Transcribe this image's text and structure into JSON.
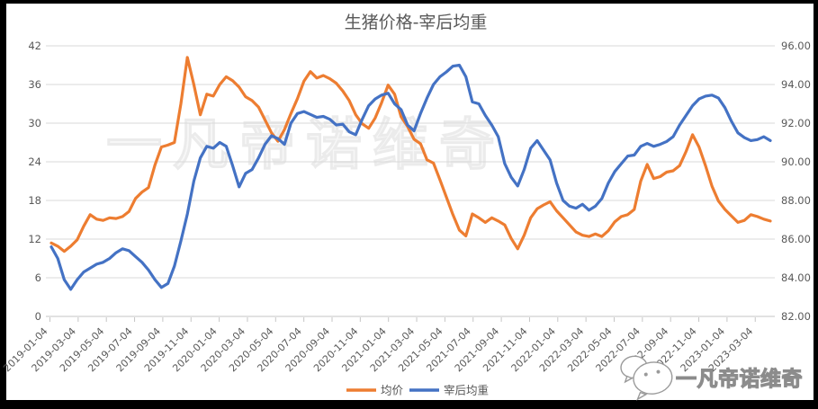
{
  "title": "生猪价格-宰后均重",
  "legend": [
    {
      "label": "均价",
      "color": "#ED7D31"
    },
    {
      "label": "宰后均重",
      "color": "#4472C4"
    }
  ],
  "watermarks": {
    "center_text": "一凡帝诺维奇",
    "corner_text": "一凡帝诺维奇",
    "corner_icon": "wechat-chat-bubbles-icon"
  },
  "colors": {
    "frame": "#000000",
    "background": "#FFFFFF",
    "grid": "#D9D9D9",
    "axis_line": "#C6C6C6",
    "axis_text": "#595959",
    "title_text": "#595959",
    "watermark_center": "#ECECEC",
    "watermark_corner": "#8C8C8C"
  },
  "chart_data": {
    "type": "line",
    "title": "生猪价格-宰后均重",
    "sampling": "biweekly from 2019-01-04 to 2023-04-07",
    "grid": true,
    "legend_position": "bottom",
    "x_tick_labels": [
      "2019-01-04",
      "2019-03-04",
      "2019-05-04",
      "2019-07-04",
      "2019-09-04",
      "2019-11-04",
      "2020-01-04",
      "2020-03-04",
      "2020-05-04",
      "2020-07-04",
      "2020-09-04",
      "2020-11-04",
      "2021-01-04",
      "2021-03-04",
      "2021-05-04",
      "2021-07-04",
      "2021-09-04",
      "2021-11-04",
      "2022-01-04",
      "2022-03-04",
      "2022-05-04",
      "2022-07-04",
      "2022-09-04",
      "2022-11-04",
      "2023-01-04",
      "2023-03-04"
    ],
    "left_axis": {
      "min": 0,
      "max": 42,
      "step": 6,
      "tick_labels": [
        "0",
        "6",
        "12",
        "18",
        "24",
        "30",
        "36",
        "42"
      ]
    },
    "right_axis": {
      "min": 82,
      "max": 96,
      "step": 2,
      "tick_labels": [
        "82.00",
        "84.00",
        "86.00",
        "88.00",
        "90.00",
        "92.00",
        "94.00",
        "96.00"
      ]
    },
    "series": [
      {
        "name": "均价",
        "axis": "left",
        "color": "#ED7D31",
        "values": [
          11.4,
          10.9,
          10.1,
          10.9,
          11.9,
          14.0,
          15.8,
          15.1,
          14.9,
          15.3,
          15.2,
          15.5,
          16.3,
          18.3,
          19.3,
          20.0,
          23.5,
          26.3,
          26.6,
          27.0,
          33.0,
          40.2,
          36.0,
          31.3,
          34.5,
          34.2,
          36.0,
          37.2,
          36.6,
          35.6,
          34.1,
          33.5,
          32.5,
          30.5,
          28.5,
          27.2,
          29.0,
          31.5,
          33.8,
          36.5,
          38.0,
          37.0,
          37.4,
          36.9,
          36.2,
          35.0,
          33.5,
          31.3,
          29.9,
          29.2,
          30.8,
          33.2,
          35.9,
          34.5,
          31.0,
          29.5,
          27.5,
          26.8,
          24.3,
          23.8,
          21.2,
          18.5,
          15.8,
          13.4,
          12.5,
          15.9,
          15.3,
          14.6,
          15.3,
          14.8,
          14.2,
          12.1,
          10.5,
          12.6,
          15.3,
          16.7,
          17.3,
          17.8,
          16.4,
          15.3,
          14.2,
          13.1,
          12.6,
          12.4,
          12.8,
          12.4,
          13.3,
          14.7,
          15.5,
          15.8,
          16.6,
          21.0,
          23.6,
          21.4,
          21.7,
          22.4,
          22.6,
          23.4,
          25.6,
          28.2,
          26.3,
          23.4,
          20.2,
          17.9,
          16.6,
          15.6,
          14.6,
          14.9,
          15.8,
          15.5,
          15.1,
          14.8
        ]
      },
      {
        "name": "宰后均重",
        "axis": "right",
        "color": "#4472C4",
        "values": [
          85.6,
          85.0,
          83.9,
          83.4,
          83.9,
          84.3,
          84.5,
          84.7,
          84.8,
          85.0,
          85.3,
          85.5,
          85.4,
          85.1,
          84.8,
          84.4,
          83.9,
          83.5,
          83.7,
          84.6,
          85.9,
          87.3,
          89.0,
          90.2,
          90.8,
          90.7,
          91.0,
          90.8,
          89.8,
          88.7,
          89.4,
          89.6,
          90.2,
          90.9,
          91.35,
          91.2,
          90.9,
          92.0,
          92.5,
          92.6,
          92.45,
          92.3,
          92.35,
          92.2,
          91.9,
          91.95,
          91.55,
          91.4,
          92.2,
          92.9,
          93.25,
          93.45,
          93.55,
          93.0,
          92.7,
          91.9,
          91.6,
          92.5,
          93.3,
          94.0,
          94.4,
          94.65,
          94.95,
          95.0,
          94.4,
          93.1,
          93.0,
          92.4,
          91.9,
          91.3,
          89.9,
          89.2,
          88.75,
          89.6,
          90.7,
          91.1,
          90.6,
          90.1,
          88.9,
          88.0,
          87.7,
          87.6,
          87.8,
          87.5,
          87.7,
          88.1,
          88.9,
          89.5,
          89.9,
          90.3,
          90.35,
          90.8,
          90.95,
          90.8,
          90.9,
          91.05,
          91.3,
          91.9,
          92.4,
          92.9,
          93.25,
          93.4,
          93.45,
          93.3,
          92.8,
          92.1,
          91.5,
          91.25,
          91.1,
          91.15,
          91.3,
          91.1
        ]
      }
    ]
  }
}
